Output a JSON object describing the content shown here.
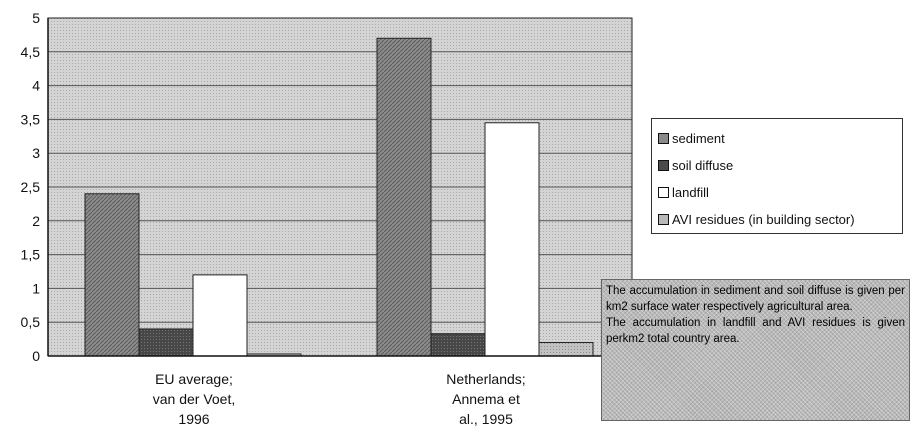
{
  "chart_data": {
    "type": "bar",
    "categories": [
      [
        "EU average;",
        "van der Voet,",
        "1996"
      ],
      [
        "Netherlands;",
        "Annema et",
        "al., 1995"
      ]
    ],
    "series": [
      {
        "name": "sediment",
        "values": [
          2.4,
          4.7
        ]
      },
      {
        "name": "soil diffuse",
        "values": [
          0.4,
          0.33
        ]
      },
      {
        "name": "landfill",
        "values": [
          1.2,
          3.45
        ]
      },
      {
        "name": "AVI residues (in building sector)",
        "values": [
          0.03,
          0.2
        ]
      }
    ],
    "title": "",
    "xlabel": "",
    "ylabel": "",
    "ylim": [
      0,
      5
    ],
    "yticks": [
      {
        "value": 0,
        "label": "0"
      },
      {
        "value": 0.5,
        "label": "0,5"
      },
      {
        "value": 1,
        "label": "1"
      },
      {
        "value": 1.5,
        "label": "1,5"
      },
      {
        "value": 2,
        "label": "2"
      },
      {
        "value": 2.5,
        "label": "2,5"
      },
      {
        "value": 3,
        "label": "3"
      },
      {
        "value": 3.5,
        "label": "3,5"
      },
      {
        "value": 4,
        "label": "4"
      },
      {
        "value": 4.5,
        "label": "4,5"
      },
      {
        "value": 5,
        "label": "5"
      }
    ],
    "grid": true,
    "legend_position": "right",
    "colors": {
      "sediment": "#8a8a8a",
      "soil diffuse": "#4a4a4a",
      "landfill": "#ffffff",
      "AVI residues (in building sector)": "#b8b8b8",
      "plot_background": "#cfcfcf"
    }
  },
  "legend": {
    "items": [
      {
        "label": "sediment",
        "color": "#8a8a8a"
      },
      {
        "label": "soil diffuse",
        "color": "#4a4a4a"
      },
      {
        "label": "landfill",
        "color": "#ffffff"
      },
      {
        "label": "AVI residues (in building sector)",
        "color": "#b8b8b8"
      }
    ]
  },
  "note": {
    "paragraphs": [
      "The accumulation in sediment and soil diffuse is given per km2 surface water respectively agricultural area.",
      "The accumulation in landfill and AVI residues is given perkm2 total country area."
    ]
  }
}
